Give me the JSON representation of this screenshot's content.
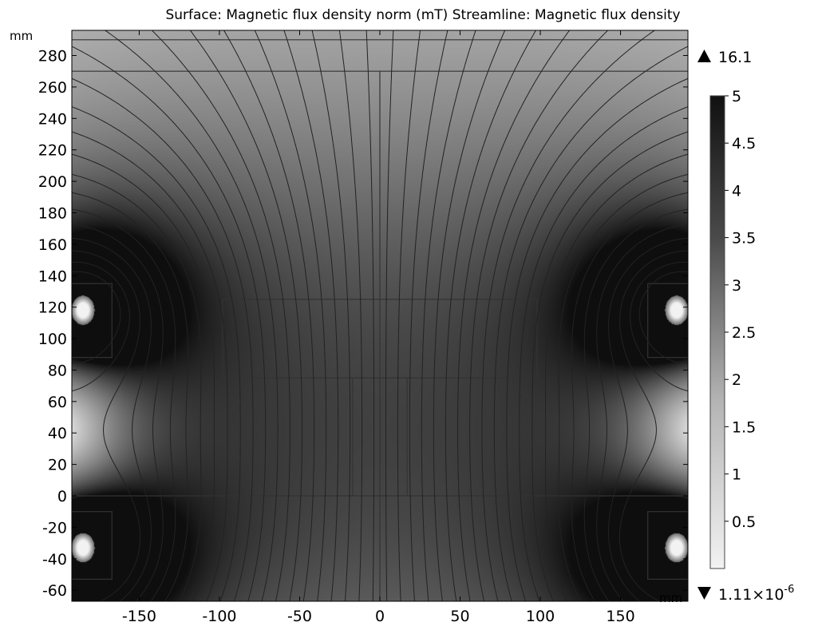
{
  "chart_data": {
    "type": "heatmap",
    "title": "Surface: Magnetic flux density norm (mT)  Streamline: Magnetic flux density",
    "xunit": "mm",
    "yunit": "mm",
    "xlim": [
      -192,
      192
    ],
    "ylim": [
      -67,
      296
    ],
    "x_ticks": [
      -150,
      -100,
      -50,
      0,
      50,
      100,
      150
    ],
    "y_ticks": [
      -60,
      -40,
      -20,
      0,
      20,
      40,
      60,
      80,
      100,
      120,
      140,
      160,
      180,
      200,
      220,
      240,
      260,
      280
    ],
    "colorscale": "gray-reversed",
    "color_range": [
      0,
      5
    ],
    "colorbar_ticks": [
      0.5,
      1,
      1.5,
      2,
      2.5,
      3,
      3.5,
      4,
      4.5,
      5
    ],
    "max_value": "16.1",
    "min_value_mantissa": "1.11×10",
    "min_value_exponent": "-6",
    "field_sources": [
      {
        "x": -185,
        "y": 118,
        "kind": "coil-upper-left"
      },
      {
        "x": 185,
        "y": 118,
        "kind": "coil-upper-right"
      },
      {
        "x": -185,
        "y": -33,
        "kind": "coil-lower-left"
      },
      {
        "x": 185,
        "y": -33,
        "kind": "coil-lower-right"
      }
    ],
    "geometry_lines": [
      {
        "x1": -192,
        "y1": 290,
        "x2": 192,
        "y2": 290
      },
      {
        "x1": -192,
        "y1": 270,
        "x2": 192,
        "y2": 270
      },
      {
        "x1": 0,
        "y1": 270,
        "x2": 0,
        "y2": -67
      },
      {
        "x1": -192,
        "y1": 0,
        "x2": 192,
        "y2": 0
      },
      {
        "x1": -17,
        "y1": 0,
        "x2": -17,
        "y2": 75
      },
      {
        "x1": 17,
        "y1": 0,
        "x2": 17,
        "y2": 75
      }
    ],
    "geometry_rects": [
      {
        "x0": -98,
        "y0": 75,
        "x1": 98,
        "y1": 125,
        "label": "central-box"
      },
      {
        "x0": -192,
        "y0": 88,
        "x1": -167,
        "y1": 135,
        "label": "coil-box-left"
      },
      {
        "x0": 167,
        "y0": 88,
        "x1": 192,
        "y1": 135,
        "label": "coil-box-right"
      },
      {
        "x0": -192,
        "y0": -53,
        "x1": -167,
        "y1": -10,
        "label": "coil-box-lower-left"
      },
      {
        "x0": 167,
        "y0": -53,
        "x1": 192,
        "y1": -10,
        "label": "coil-box-lower-right"
      }
    ],
    "streamline_count": 44
  }
}
